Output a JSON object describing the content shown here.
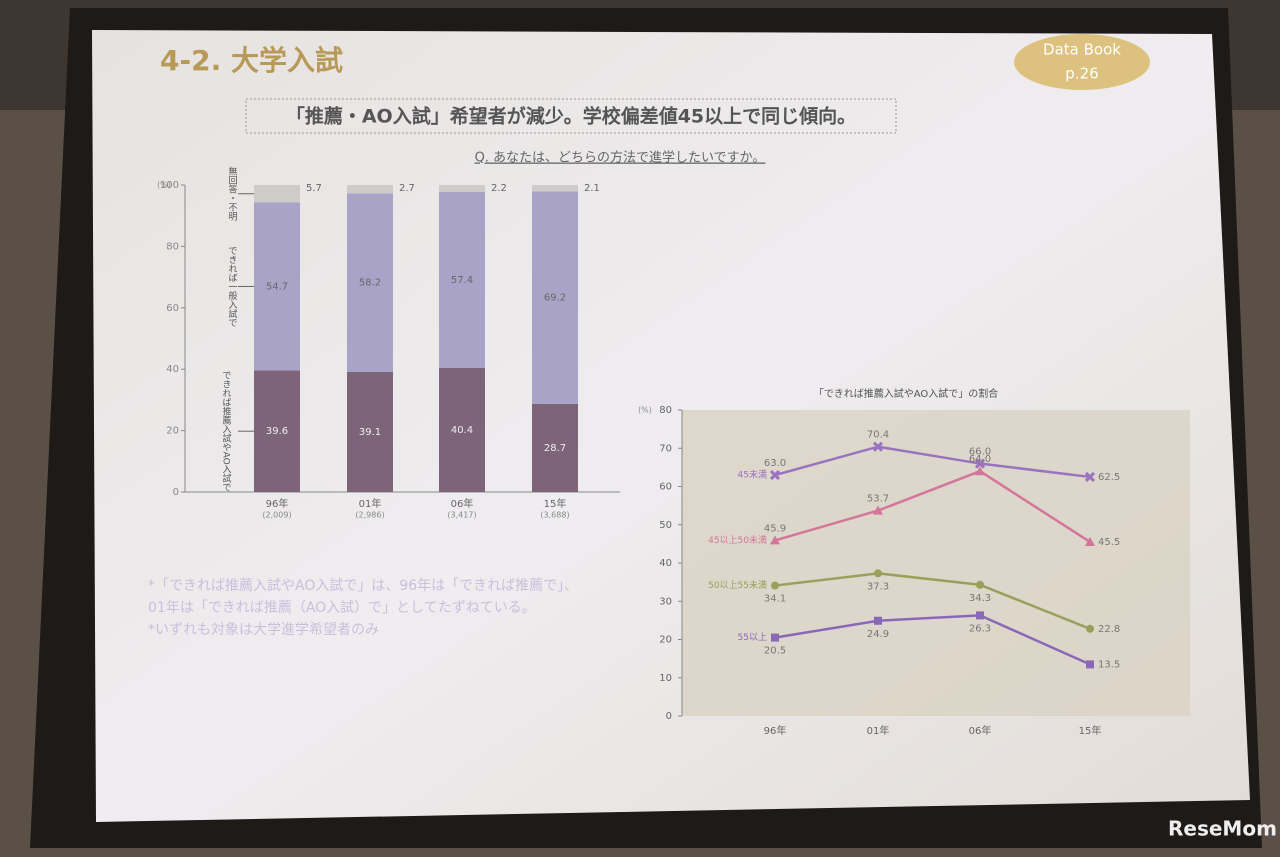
{
  "slide": {
    "section_title": "4-2. 大学入試",
    "badge": [
      "Data Book",
      "p.26"
    ],
    "headline": "「推薦・AO入試」希望者が減少。学校偏差値45以上で同じ傾向。",
    "question": "Q. あなたは、どちらの方法で進学したいですか。",
    "notes": [
      "*「できれば推薦入試やAO入試で」は、96年は「できれば推薦で」、",
      "01年は「できれば推薦（AO入試）で」としてたずねている。",
      "*いずれも対象は大学進学希望者のみ"
    ],
    "watermark": "ReseMom"
  },
  "chart_data": [
    {
      "type": "bar",
      "stacked": true,
      "y_label": "(%)",
      "categories": [
        "96年",
        "01年",
        "06年",
        "15年"
      ],
      "category_notes": [
        "(2,009)",
        "(2,986)",
        "(3,417)",
        "(3,688)"
      ],
      "series": [
        {
          "name": "できれば推薦入試やAO入試で",
          "color": "#7d6478",
          "values": [
            39.6,
            39.1,
            40.4,
            28.7
          ]
        },
        {
          "name": "できれば一般入試で",
          "color": "#aaa3c8",
          "values": [
            54.7,
            58.2,
            57.4,
            69.2
          ]
        },
        {
          "name": "無回答・不明",
          "color": "#cfcbc9",
          "values": [
            5.7,
            2.7,
            2.2,
            2.1
          ]
        }
      ],
      "ylim": [
        0,
        100
      ],
      "yticks": [
        0,
        20,
        40,
        60,
        80,
        100
      ]
    },
    {
      "type": "line",
      "title": "「できれば推薦入試やAO入試で」の割合",
      "y_label": "(%)",
      "categories": [
        "96年",
        "01年",
        "06年",
        "15年"
      ],
      "series": [
        {
          "name": "45未満",
          "color": "#9a72c0",
          "marker": "x",
          "values": [
            63.0,
            70.4,
            66.0,
            62.5
          ],
          "value_labels": [
            "63.0",
            "70.4",
            "66.0",
            "62.5"
          ]
        },
        {
          "name": "45以上50未満",
          "color": "#d3769a",
          "marker": "triangle",
          "values": [
            45.9,
            53.7,
            64.0,
            45.5
          ],
          "value_labels": [
            "45.9",
            "53.7",
            "64.0",
            "45.5"
          ]
        },
        {
          "name": "50以上55未満",
          "color": "#98a05a",
          "marker": "circle",
          "values": [
            34.1,
            37.3,
            34.3,
            22.8
          ],
          "value_labels": [
            "34.1",
            "37.3",
            "34.3",
            "22.8"
          ]
        },
        {
          "name": "55以上",
          "color": "#8a68b8",
          "marker": "square",
          "values": [
            20.5,
            24.9,
            26.3,
            13.5
          ],
          "value_labels": [
            "20.5",
            "24.9",
            "26.3",
            "13.5"
          ]
        }
      ],
      "ylim": [
        0,
        80
      ],
      "yticks": [
        0,
        10,
        20,
        30,
        40,
        50,
        60,
        70,
        80
      ]
    }
  ]
}
